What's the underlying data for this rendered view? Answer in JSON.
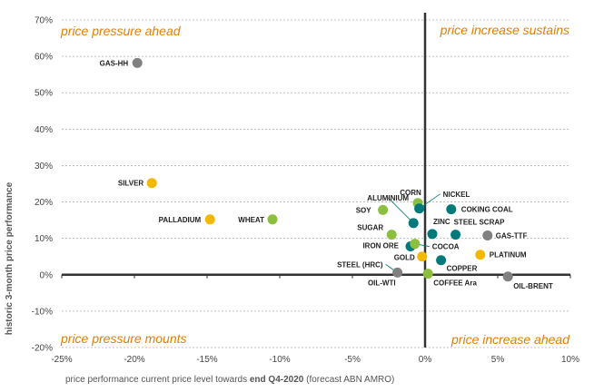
{
  "chart_data": {
    "type": "scatter",
    "xlabel": {
      "part1": "price performance current price level towards ",
      "bold": "end Q4-2020",
      "part2": " (forecast ABN AMRO)"
    },
    "ylabel": "historic 3-month price performance",
    "xlim": [
      -25,
      10
    ],
    "ylim": [
      -20,
      70
    ],
    "xticks": [
      -25,
      -20,
      -15,
      -10,
      -5,
      0,
      5,
      10
    ],
    "yticks": [
      -20,
      -10,
      0,
      10,
      20,
      30,
      40,
      50,
      60,
      70
    ],
    "tick_suffix": "%",
    "quadrant_labels": {
      "top_left": "price pressure ahead",
      "top_right": "price increase sustains",
      "bottom_left": "price pressure mounts",
      "bottom_right": "price increase ahead"
    },
    "colors": {
      "energy": "#808080",
      "precious": "#f5b800",
      "agri": "#8cbf3f",
      "base": "#00797a",
      "quadrant_text": "#e07f00",
      "axis": "#333333",
      "grid": "#b0b0b0"
    },
    "points": [
      {
        "name": "GAS-HH",
        "x": -19.8,
        "y": 58.2,
        "group": "energy"
      },
      {
        "name": "SILVER",
        "x": -18.8,
        "y": 25.2,
        "group": "precious"
      },
      {
        "name": "PALLADIUM",
        "x": -14.8,
        "y": 15.2,
        "group": "precious"
      },
      {
        "name": "WHEAT",
        "x": -10.5,
        "y": 15.2,
        "group": "agri"
      },
      {
        "name": "SOY",
        "x": -2.9,
        "y": 17.8,
        "group": "agri"
      },
      {
        "name": "CORN",
        "x": -0.5,
        "y": 19.7,
        "group": "agri"
      },
      {
        "name": "ALUMINIUM",
        "x": -0.8,
        "y": 14.2,
        "group": "base"
      },
      {
        "name": "NICKEL",
        "x": -0.4,
        "y": 18.2,
        "group": "base"
      },
      {
        "name": "COKING COAL",
        "x": 1.8,
        "y": 18.0,
        "group": "base"
      },
      {
        "name": "SUGAR",
        "x": -2.3,
        "y": 11.0,
        "group": "agri"
      },
      {
        "name": "ZINC",
        "x": 0.5,
        "y": 11.2,
        "group": "base"
      },
      {
        "name": "STEEL SCRAP",
        "x": 2.1,
        "y": 11.0,
        "group": "base"
      },
      {
        "name": "GAS-TTF",
        "x": 4.3,
        "y": 10.8,
        "group": "energy"
      },
      {
        "name": "IRON ORE",
        "x": -1.0,
        "y": 7.8,
        "group": "base"
      },
      {
        "name": "COCOA",
        "x": -0.7,
        "y": 8.5,
        "group": "agri"
      },
      {
        "name": "GOLD",
        "x": -0.2,
        "y": 5.0,
        "group": "precious"
      },
      {
        "name": "COPPER",
        "x": 1.1,
        "y": 4.0,
        "group": "base"
      },
      {
        "name": "PLATINUM",
        "x": 3.8,
        "y": 5.5,
        "group": "precious"
      },
      {
        "name": "STEEL (HRC)",
        "x": -1.9,
        "y": 0.6,
        "group": "energy"
      },
      {
        "name": "OIL-WTI",
        "x": -1.9,
        "y": 0.6,
        "group": "energy",
        "hidden_marker": true
      },
      {
        "name": "COFFEE Ara",
        "x": 0.2,
        "y": 0.3,
        "group": "agri"
      },
      {
        "name": "OIL-BRENT",
        "x": 5.7,
        "y": -0.5,
        "group": "energy"
      }
    ]
  }
}
